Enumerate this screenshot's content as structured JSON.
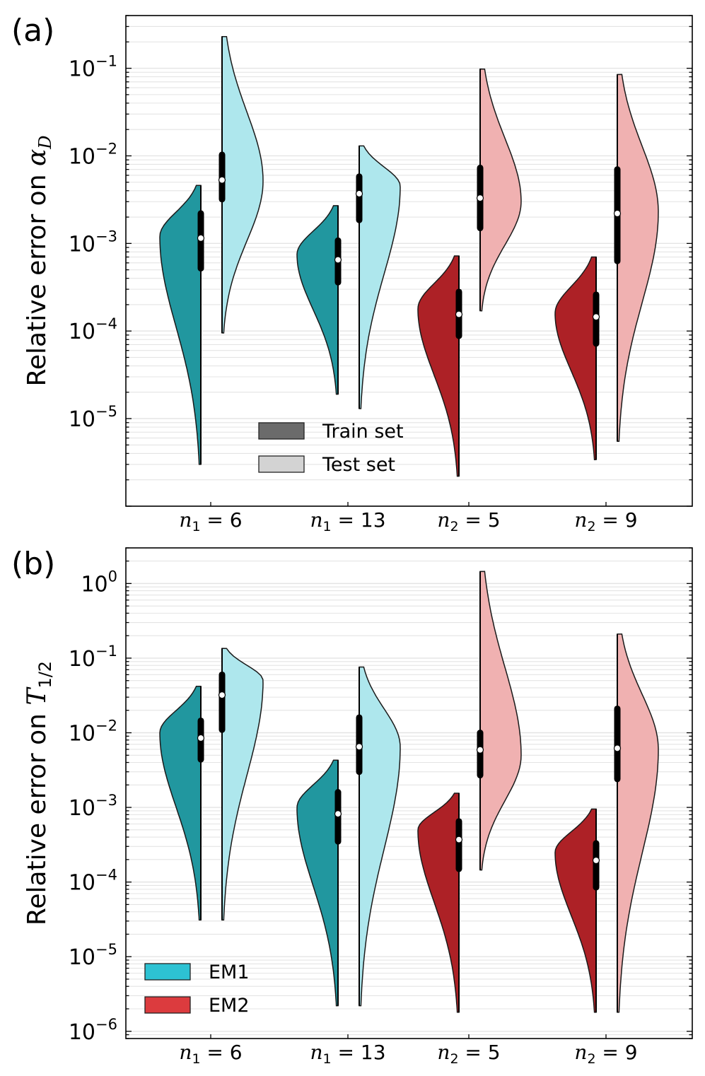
{
  "chart_data": [
    {
      "panel_label": "(a)",
      "type": "violin",
      "ylabel": {
        "prefix": "Relative error on ",
        "symbol": "α",
        "subscript": "D"
      },
      "yscale": "log",
      "ylim": [
        1e-06,
        0.4
      ],
      "yticks": [
        {
          "value": 1e-05,
          "base": "10",
          "exp": "−5"
        },
        {
          "value": 0.0001,
          "base": "10",
          "exp": "−4"
        },
        {
          "value": 0.001,
          "base": "10",
          "exp": "−3"
        },
        {
          "value": 0.01,
          "base": "10",
          "exp": "−2"
        },
        {
          "value": 0.1,
          "base": "10",
          "exp": "−1"
        }
      ],
      "grid": true,
      "categories": [
        {
          "var": "n",
          "sub": "1",
          "rest": " = 6"
        },
        {
          "var": "n",
          "sub": "1",
          "rest": " = 13"
        },
        {
          "var": "n",
          "sub": "2",
          "rest": " = 5"
        },
        {
          "var": "n",
          "sub": "2",
          "rest": " = 9"
        }
      ],
      "legend": {
        "position": "lower-center",
        "entries": [
          {
            "label": "Train set",
            "color": "#6b6b6b"
          },
          {
            "label": "Test set",
            "color": "#d3d3d3"
          }
        ]
      },
      "violins": [
        {
          "category": 0,
          "split": "train",
          "model": "EM1",
          "color": "#21979f",
          "min": 3e-06,
          "max": 0.0046,
          "median": 0.00115,
          "q1": 0.00052,
          "q3": 0.0022,
          "mode": 0.0012
        },
        {
          "category": 0,
          "split": "test",
          "model": "EM1",
          "color": "#aee7ed",
          "min": 9.5e-05,
          "max": 0.23,
          "median": 0.0053,
          "q1": 0.0032,
          "q3": 0.0103,
          "mode": 0.0052
        },
        {
          "category": 1,
          "split": "train",
          "model": "EM1",
          "color": "#21979f",
          "min": 1.9e-05,
          "max": 0.0027,
          "median": 0.00065,
          "q1": 0.00036,
          "q3": 0.00108,
          "mode": 0.00075
        },
        {
          "category": 1,
          "split": "test",
          "model": "EM1",
          "color": "#aee7ed",
          "min": 1.3e-05,
          "max": 0.013,
          "median": 0.0037,
          "q1": 0.00185,
          "q3": 0.0058,
          "mode": 0.0045
        },
        {
          "category": 2,
          "split": "train",
          "model": "EM2",
          "color": "#ad2126",
          "min": 2.2e-06,
          "max": 0.00072,
          "median": 0.000155,
          "q1": 8.8e-05,
          "q3": 0.00028,
          "mode": 0.00018
        },
        {
          "category": 2,
          "split": "test",
          "model": "EM2",
          "color": "#f0b1b1",
          "min": 0.00017,
          "max": 0.098,
          "median": 0.0033,
          "q1": 0.0015,
          "q3": 0.0073,
          "mode": 0.003
        },
        {
          "category": 3,
          "split": "train",
          "model": "EM2",
          "color": "#ad2126",
          "min": 3.4e-06,
          "max": 0.0007,
          "median": 0.000145,
          "q1": 7.2e-05,
          "q3": 0.00026,
          "mode": 0.00016
        },
        {
          "category": 3,
          "split": "test",
          "model": "EM2",
          "color": "#f0b1b1",
          "min": 5.5e-06,
          "max": 0.085,
          "median": 0.0022,
          "q1": 0.00063,
          "q3": 0.007,
          "mode": 0.0023
        }
      ]
    },
    {
      "panel_label": "(b)",
      "type": "violin",
      "ylabel": {
        "prefix": "Relative error on ",
        "symbol": "T",
        "subscript": "1/2"
      },
      "yscale": "log",
      "ylim": [
        8e-07,
        3.0
      ],
      "yticks": [
        {
          "value": 1e-06,
          "base": "10",
          "exp": "−6"
        },
        {
          "value": 1e-05,
          "base": "10",
          "exp": "−5"
        },
        {
          "value": 0.0001,
          "base": "10",
          "exp": "−4"
        },
        {
          "value": 0.001,
          "base": "10",
          "exp": "−3"
        },
        {
          "value": 0.01,
          "base": "10",
          "exp": "−2"
        },
        {
          "value": 0.1,
          "base": "10",
          "exp": "−1"
        },
        {
          "value": 1,
          "base": "10",
          "exp": "0"
        }
      ],
      "grid": true,
      "categories": [
        {
          "var": "n",
          "sub": "1",
          "rest": " = 6"
        },
        {
          "var": "n",
          "sub": "1",
          "rest": " = 13"
        },
        {
          "var": "n",
          "sub": "2",
          "rest": " = 5"
        },
        {
          "var": "n",
          "sub": "2",
          "rest": " = 9"
        }
      ],
      "legend": {
        "position": "lower-left",
        "entries": [
          {
            "label": "EM1",
            "color": "#2dc2d3"
          },
          {
            "label": "EM2",
            "color": "#dc3b3e"
          }
        ]
      },
      "violins": [
        {
          "category": 0,
          "split": "train",
          "model": "EM1",
          "color": "#21979f",
          "min": 3.1e-05,
          "max": 0.042,
          "median": 0.0085,
          "q1": 0.0044,
          "q3": 0.0145,
          "mode": 0.01
        },
        {
          "category": 0,
          "split": "test",
          "model": "EM1",
          "color": "#aee7ed",
          "min": 3.1e-05,
          "max": 0.135,
          "median": 0.032,
          "q1": 0.011,
          "q3": 0.06,
          "mode": 0.05
        },
        {
          "category": 1,
          "split": "train",
          "model": "EM1",
          "color": "#21979f",
          "min": 2.2e-06,
          "max": 0.0043,
          "median": 0.00082,
          "q1": 0.00035,
          "q3": 0.0016,
          "mode": 0.001
        },
        {
          "category": 1,
          "split": "test",
          "model": "EM1",
          "color": "#aee7ed",
          "min": 2.2e-06,
          "max": 0.076,
          "median": 0.0065,
          "q1": 0.003,
          "q3": 0.016,
          "mode": 0.0065
        },
        {
          "category": 2,
          "split": "train",
          "model": "EM2",
          "color": "#ad2126",
          "min": 1.8e-06,
          "max": 0.00155,
          "median": 0.00037,
          "q1": 0.00015,
          "q3": 0.00065,
          "mode": 0.0005
        },
        {
          "category": 2,
          "split": "test",
          "model": "EM2",
          "color": "#f0b1b1",
          "min": 0.000145,
          "max": 1.45,
          "median": 0.0059,
          "q1": 0.0027,
          "q3": 0.01,
          "mode": 0.005
        },
        {
          "category": 3,
          "split": "train",
          "model": "EM2",
          "color": "#ad2126",
          "min": 1.8e-06,
          "max": 0.00095,
          "median": 0.000195,
          "q1": 8.5e-05,
          "q3": 0.00033,
          "mode": 0.00025
        },
        {
          "category": 3,
          "split": "test",
          "model": "EM2",
          "color": "#f0b1b1",
          "min": 1.8e-06,
          "max": 0.21,
          "median": 0.0062,
          "q1": 0.0024,
          "q3": 0.021,
          "mode": 0.006
        }
      ]
    }
  ]
}
